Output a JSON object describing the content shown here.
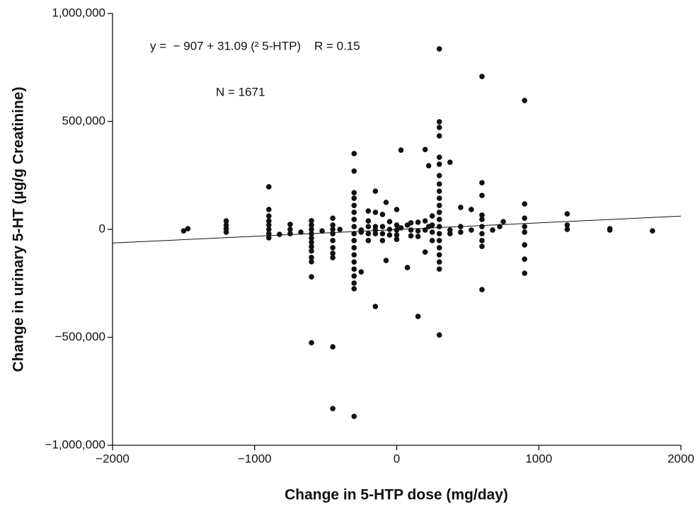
{
  "chart_data": {
    "type": "scatter",
    "x_label": "Change in 5-HTP dose (mg/day)",
    "y_label": "Change in urinary 5-HT (µg/g Creatinine)",
    "annotations": [
      "y =  − 907 + 31.09 (² 5-HTP)    R = 0.15",
      "N = 1671"
    ],
    "fit_line": {
      "intercept": -907,
      "slope": 31.09
    },
    "color": "#111111",
    "xlim": [
      -2000,
      2000
    ],
    "xticks": [
      {
        "value": -2000,
        "label": "−2000"
      },
      {
        "value": -1000,
        "label": "−1000"
      },
      0,
      1000,
      2000
    ],
    "ylim": [
      -1000000,
      1000000
    ],
    "yticks": [
      {
        "value": -1000000,
        "label": "−1,000,000"
      },
      {
        "value": -500000,
        "label": "−500,000"
      },
      0,
      {
        "value": 500000,
        "label": "500,000"
      },
      {
        "value": 1000000,
        "label": "1,000,000"
      }
    ],
    "grid": false,
    "x": [
      -1500,
      -1470,
      -1200,
      -1200,
      -1200,
      -1200,
      -900,
      -900,
      -900,
      -900,
      -900,
      -900,
      -900,
      -900,
      -825,
      -750,
      -750,
      -750,
      -675,
      -600,
      -600,
      -600,
      -600,
      -600,
      -600,
      -600,
      -600,
      -600,
      -600,
      -600,
      -600,
      -525,
      -450,
      -450,
      -450,
      -450,
      -450,
      -450,
      -450,
      -450,
      -450,
      -450,
      -400,
      -300,
      -300,
      -300,
      -300,
      -300,
      -300,
      -300,
      -300,
      -300,
      -300,
      -300,
      -300,
      -300,
      -300,
      -300,
      -300,
      -300,
      -300,
      -250,
      -250,
      -250,
      -200,
      -200,
      -200,
      -200,
      -200,
      -150,
      -150,
      -150,
      -150,
      -150,
      -150,
      -100,
      -100,
      -100,
      -100,
      -75,
      -75,
      -50,
      -50,
      -50,
      0,
      0,
      0,
      0,
      0,
      30,
      30,
      75,
      75,
      100,
      100,
      100,
      150,
      150,
      150,
      150,
      200,
      200,
      200,
      200,
      225,
      225,
      250,
      250,
      250,
      250,
      300,
      300,
      300,
      300,
      300,
      300,
      300,
      300,
      300,
      300,
      300,
      300,
      300,
      300,
      300,
      300,
      300,
      300,
      300,
      300,
      300,
      375,
      375,
      375,
      450,
      450,
      450,
      525,
      525,
      600,
      600,
      600,
      600,
      600,
      600,
      600,
      600,
      600,
      600,
      675,
      725,
      750,
      900,
      900,
      900,
      900,
      900,
      900,
      900,
      900,
      1200,
      1200,
      1200,
      1500,
      1500,
      1800
    ],
    "values": [
      -7000,
      3000,
      39000,
      20000,
      3000,
      -13000,
      197000,
      92000,
      62000,
      39000,
      20000,
      0,
      -20000,
      -39000,
      -23000,
      23000,
      0,
      -20000,
      -13000,
      40000,
      20000,
      0,
      -20000,
      -40000,
      -60000,
      -80000,
      -100000,
      -130000,
      -150000,
      -220000,
      -525000,
      -7000,
      52000,
      20000,
      0,
      -20000,
      -52000,
      -85000,
      -111000,
      -131000,
      -544000,
      -830000,
      0,
      351000,
      270000,
      170000,
      144000,
      111000,
      79000,
      46000,
      13000,
      -20000,
      -52000,
      -85000,
      -118000,
      -151000,
      -184000,
      -216000,
      -249000,
      -275000,
      -866000,
      -3000,
      -13000,
      -197000,
      85000,
      39000,
      13000,
      -20000,
      -52000,
      177000,
      79000,
      13000,
      -3000,
      -20000,
      -357000,
      69000,
      13000,
      -20000,
      -52000,
      125000,
      -144000,
      36000,
      0,
      -26000,
      92000,
      20000,
      -3000,
      -26000,
      -46000,
      367000,
      7000,
      20000,
      -177000,
      30000,
      -3000,
      -30000,
      33000,
      -7000,
      -33000,
      -403000,
      370000,
      39000,
      -3000,
      -105000,
      295000,
      13000,
      62000,
      20000,
      -13000,
      -52000,
      836000,
      498000,
      472000,
      433000,
      334000,
      302000,
      249000,
      210000,
      177000,
      144000,
      111000,
      79000,
      46000,
      13000,
      -20000,
      -52000,
      -85000,
      -118000,
      -151000,
      -184000,
      -489000,
      311000,
      -3000,
      -20000,
      102000,
      13000,
      -13000,
      92000,
      -3000,
      708000,
      216000,
      157000,
      66000,
      46000,
      13000,
      -20000,
      -52000,
      -79000,
      -279000,
      -3000,
      13000,
      36000,
      597000,
      118000,
      52000,
      13000,
      -13000,
      -72000,
      -138000,
      -203000,
      72000,
      20000,
      0,
      3000,
      -3000,
      -7000
    ]
  }
}
